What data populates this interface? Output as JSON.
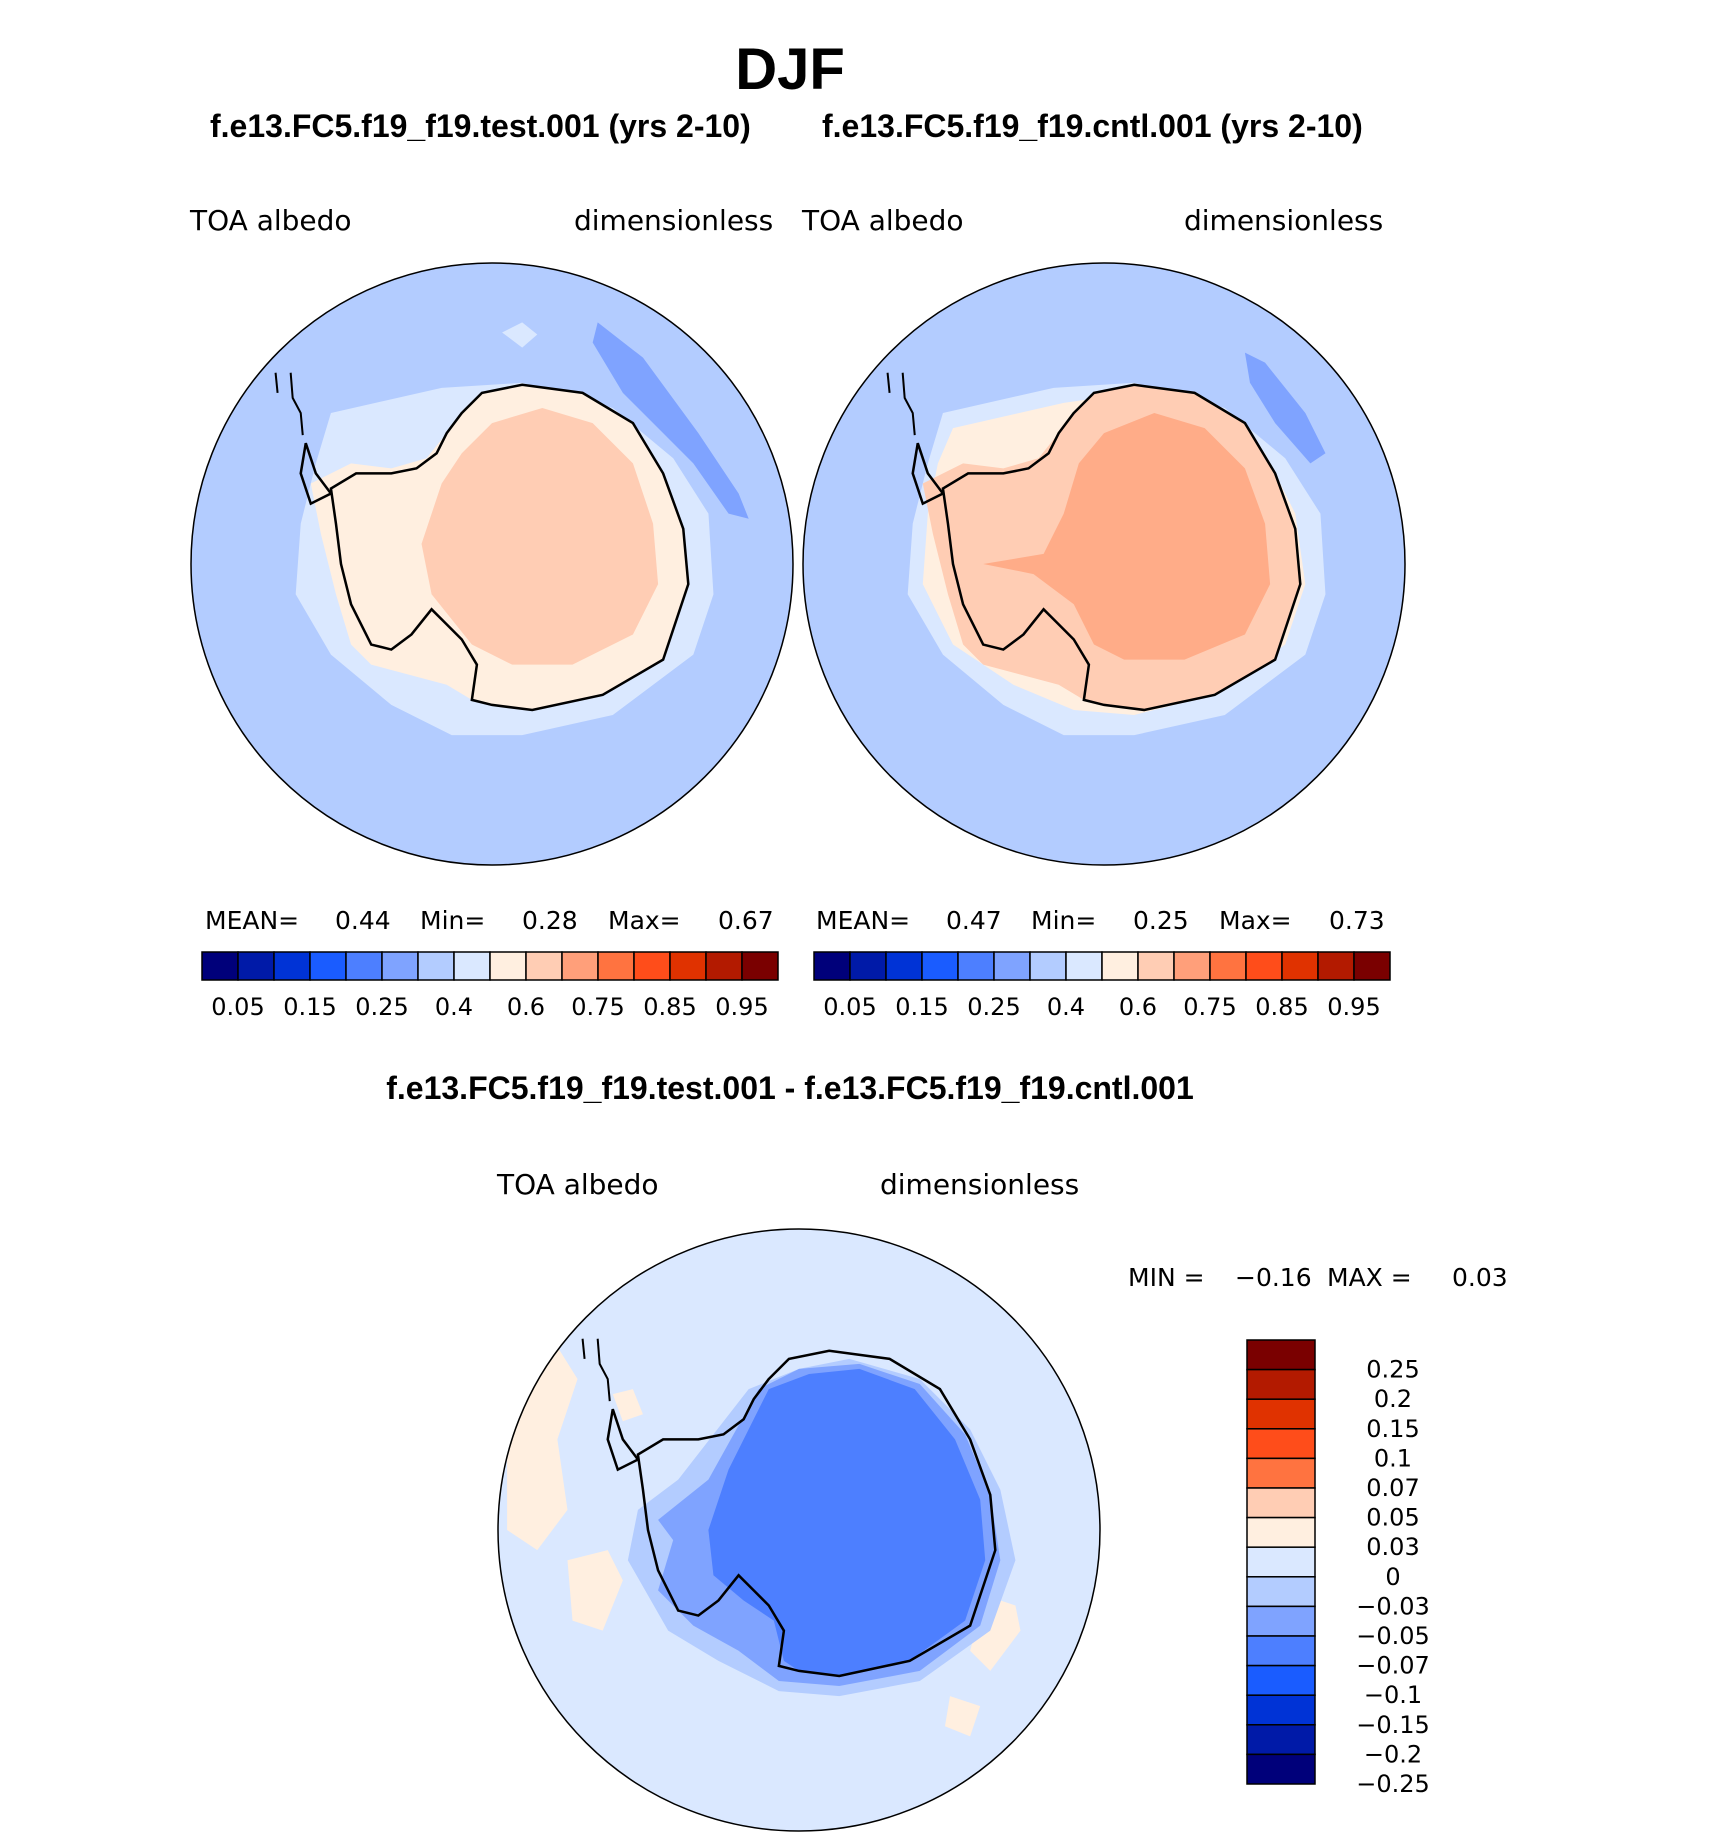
{
  "title": "DJF",
  "test_case_title": "f.e13.FC5.f19_f19.test.001 (yrs 2-10)",
  "cntl_case_title": "f.e13.FC5.f19_f19.cntl.001 (yrs 2-10)",
  "diff_title": "f.e13.FC5.f19_f19.test.001 - f.e13.FC5.f19_f19.cntl.001",
  "panels": {
    "test": {
      "variable": "TOA  albedo",
      "units": "dimensionless",
      "mean_label": "MEAN=",
      "mean_value": "0.44",
      "min_label": "Min=",
      "min_value": "0.28",
      "max_label": "Max=",
      "max_value": "0.67"
    },
    "cntl": {
      "variable": "TOA  albedo",
      "units": "dimensionless",
      "mean_label": "MEAN=",
      "mean_value": "0.47",
      "min_label": "Min=",
      "min_value": "0.25",
      "max_label": "Max=",
      "max_value": "0.73"
    },
    "diff": {
      "variable": "TOA  albedo",
      "units": "dimensionless",
      "min_label": "MIN =",
      "min_value": "−0.16",
      "max_label": "MAX =",
      "max_value": "0.03"
    }
  },
  "colorbar_abs": {
    "colors": [
      "#00007a",
      "#001aa8",
      "#0033d6",
      "#1a5cff",
      "#4d7fff",
      "#7fa3ff",
      "#b3ccff",
      "#dae8ff",
      "#ffefe0",
      "#ffcdb4",
      "#ff9f7a",
      "#ff7340",
      "#ff4d1a",
      "#e03200",
      "#b31a00",
      "#7a0000"
    ],
    "tick_labels": [
      "0.05",
      "0.15",
      "0.25",
      "0.4",
      "0.6",
      "0.75",
      "0.85",
      "0.95"
    ]
  },
  "colorbar_diff": {
    "colors": [
      "#7a0000",
      "#b31a00",
      "#e03200",
      "#ff4d1a",
      "#ff7340",
      "#ffcdb4",
      "#ffefe0",
      "#dae8ff",
      "#b3ccff",
      "#7fa3ff",
      "#4d7fff",
      "#1a5cff",
      "#0033d6",
      "#001aa8",
      "#00007a"
    ],
    "tick_labels": [
      "0.25",
      "0.2",
      "0.15",
      "0.1",
      "0.07",
      "0.05",
      "0.03",
      "0",
      "−0.03",
      "−0.05",
      "−0.07",
      "−0.1",
      "−0.15",
      "−0.2",
      "−0.25"
    ]
  }
}
